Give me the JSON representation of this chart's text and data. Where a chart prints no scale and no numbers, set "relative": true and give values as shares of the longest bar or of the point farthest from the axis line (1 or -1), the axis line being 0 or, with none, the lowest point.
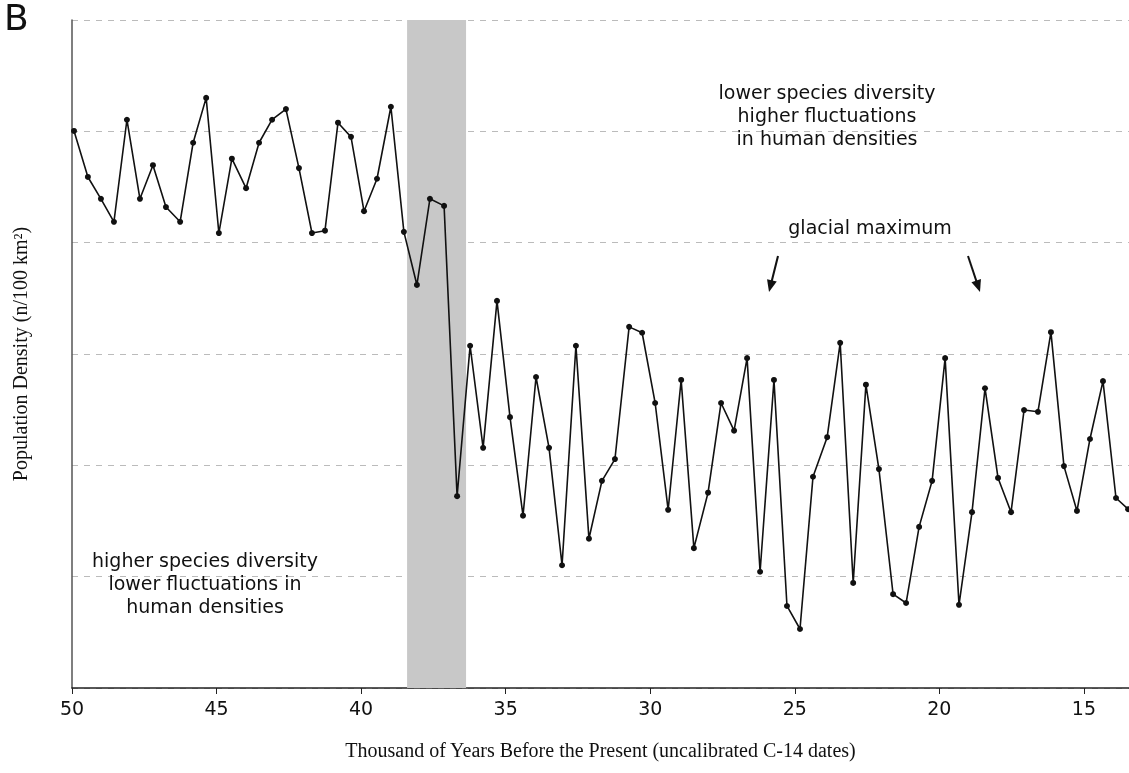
{
  "chart_data": {
    "type": "line",
    "relative": true,
    "xlabel": "Thousand of Years Before the Present (uncalibrated C-14 dates)",
    "ylabel": "Population Density (n/100 km²)",
    "xlim": [
      50,
      13.44
    ],
    "xticks": [
      50,
      45,
      40,
      35,
      30,
      25,
      20,
      15
    ],
    "grid": "y",
    "marker": "circle",
    "line_style": "solid",
    "bands": [
      {
        "axis": "x",
        "from": 38.41,
        "to": 36.37,
        "color": "#c8c8c8"
      }
    ],
    "annotations": [
      "B",
      "lower species diversity\nhigher fluctuations\nin human densities",
      "glacial maximum",
      "higher species diversity\nlower fluctuations in\nhuman densities"
    ],
    "series": [
      {
        "color": "#111111",
        "x": [
          49.93,
          49.45,
          49.0,
          48.55,
          48.1,
          47.65,
          47.2,
          46.75,
          46.26,
          45.81,
          45.36,
          44.92,
          44.47,
          43.98,
          43.53,
          43.08,
          42.6,
          42.15,
          41.7,
          41.25,
          40.8,
          40.35,
          39.9,
          39.45,
          38.97,
          38.52,
          38.07,
          37.62,
          37.13,
          36.68,
          36.23,
          35.78,
          35.3,
          34.85,
          34.4,
          33.95,
          33.5,
          33.05,
          32.57,
          32.12,
          31.67,
          31.22,
          30.73,
          30.28,
          29.83,
          29.38,
          28.93,
          28.49,
          28.0,
          27.55,
          27.1,
          26.65,
          26.2,
          25.72,
          25.27,
          24.82,
          24.37,
          23.88,
          23.43,
          22.98,
          22.54,
          22.09,
          21.6,
          21.15,
          20.7,
          20.25,
          19.8,
          19.32,
          18.87,
          18.42,
          17.97,
          17.52,
          17.07,
          16.59,
          16.14,
          15.69,
          15.24,
          14.79,
          14.34,
          13.89,
          13.47
        ],
        "values": [
          0.944,
          0.866,
          0.829,
          0.79,
          0.963,
          0.829,
          0.886,
          0.815,
          0.79,
          0.924,
          1,
          0.771,
          0.897,
          0.847,
          0.924,
          0.963,
          0.981,
          0.881,
          0.771,
          0.775,
          0.958,
          0.934,
          0.808,
          0.863,
          0.985,
          0.773,
          0.683,
          0.829,
          0.817,
          0.325,
          0.58,
          0.407,
          0.656,
          0.459,
          0.292,
          0.527,
          0.407,
          0.208,
          0.58,
          0.253,
          0.351,
          0.388,
          0.612,
          0.602,
          0.483,
          0.302,
          0.522,
          0.237,
          0.331,
          0.483,
          0.436,
          0.559,
          0.197,
          0.522,
          0.139,
          0.1,
          0.358,
          0.425,
          0.585,
          0.178,
          0.514,
          0.371,
          0.159,
          0.144,
          0.273,
          0.351,
          0.559,
          0.141,
          0.298,
          0.508,
          0.356,
          0.298,
          0.471,
          0.468,
          0.603,
          0.376,
          0.3,
          0.422,
          0.52,
          0.322,
          0.303
        ]
      }
    ]
  }
}
